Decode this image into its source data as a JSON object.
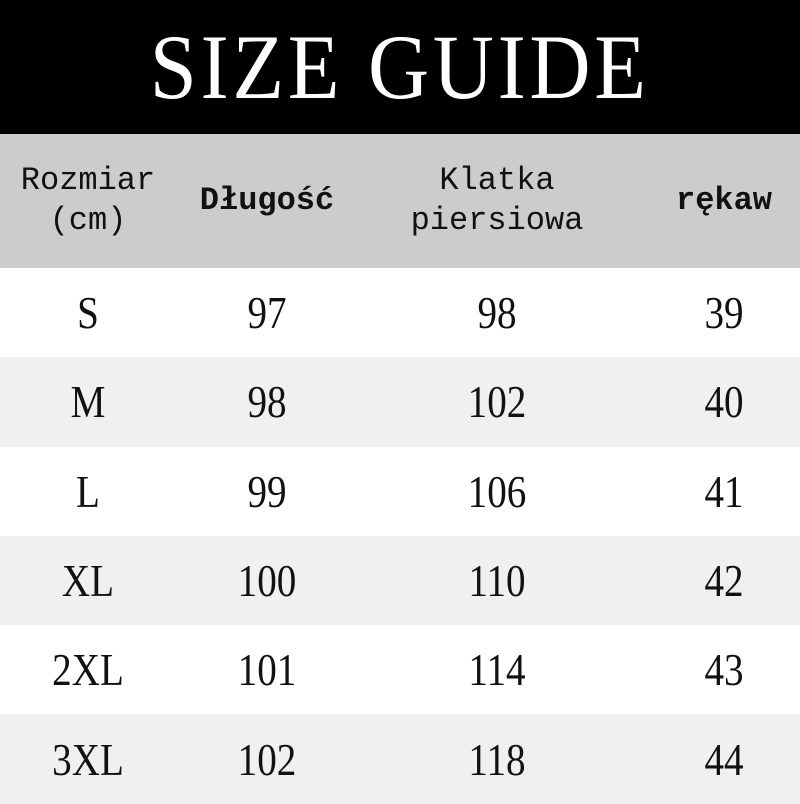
{
  "title": "SIZE GUIDE",
  "table": {
    "headers": [
      "Rozmiar\n(cm)",
      "Długość",
      "Klatka\npiersiowa",
      "rękaw"
    ],
    "rows": [
      [
        "S",
        "97",
        "98",
        "39"
      ],
      [
        "M",
        "98",
        "102",
        "40"
      ],
      [
        "L",
        "99",
        "106",
        "41"
      ],
      [
        "XL",
        "100",
        "110",
        "42"
      ],
      [
        "2XL",
        "101",
        "114",
        "43"
      ],
      [
        "3XL",
        "102",
        "118",
        "44"
      ]
    ]
  },
  "colors": {
    "title_bg": "#000000",
    "header_bg": "#cccccc",
    "row_alt_bg": "#f0f0f0"
  }
}
